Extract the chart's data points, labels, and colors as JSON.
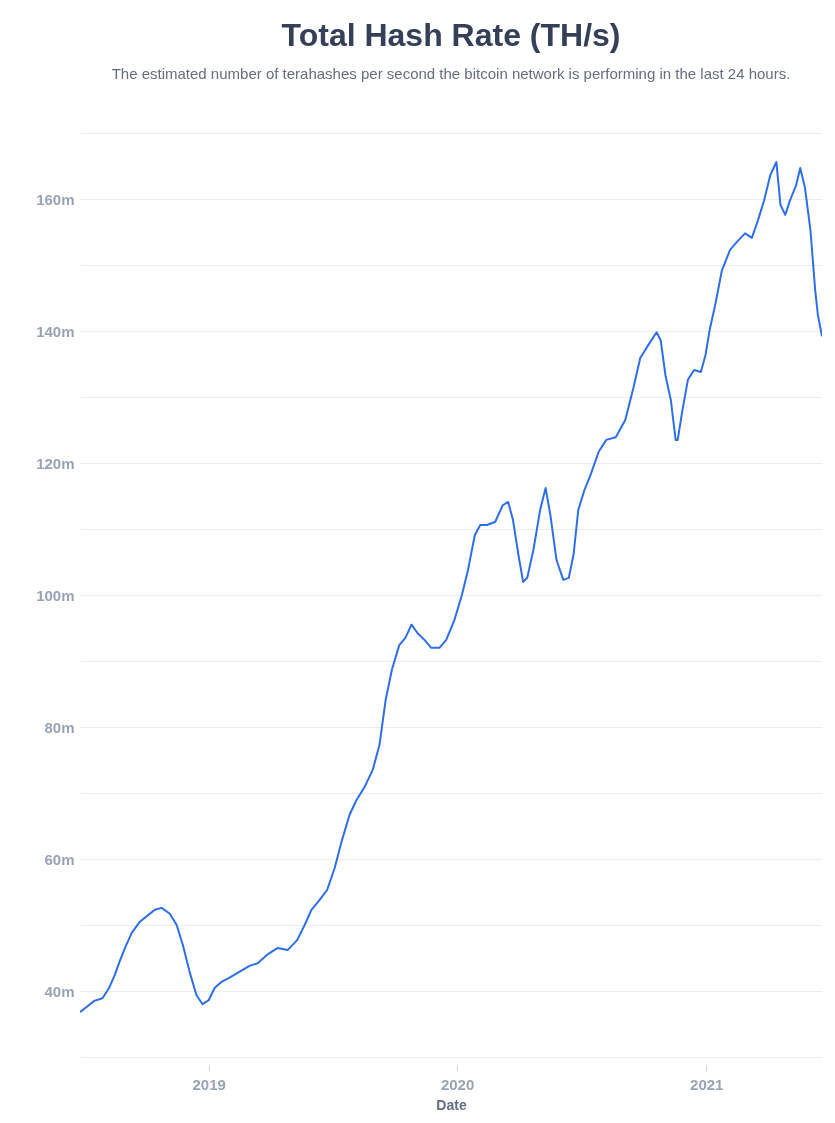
{
  "chart_data": {
    "type": "line",
    "title": "Total Hash Rate (TH/s)",
    "subtitle": "The estimated number of terahashes per second the bitcoin network is performing in the last 24 hours.",
    "xlabel": "Date",
    "x": [
      "2018-06-26",
      "2018-07-07",
      "2018-07-17",
      "2018-07-29",
      "2018-08-08",
      "2018-08-16",
      "2018-08-23",
      "2018-08-31",
      "2018-09-10",
      "2018-09-22",
      "2018-10-04",
      "2018-10-14",
      "2018-10-24",
      "2018-11-05",
      "2018-11-15",
      "2018-11-24",
      "2018-12-04",
      "2018-12-14",
      "2018-12-23",
      "2019-01-01",
      "2019-01-10",
      "2019-01-20",
      "2019-01-31",
      "2019-02-15",
      "2019-03-02",
      "2019-03-14",
      "2019-03-28",
      "2019-04-12",
      "2019-04-27",
      "2019-05-11",
      "2019-05-22",
      "2019-06-01",
      "2019-06-13",
      "2019-06-24",
      "2019-07-05",
      "2019-07-16",
      "2019-07-27",
      "2019-08-06",
      "2019-08-18",
      "2019-08-30",
      "2019-09-09",
      "2019-09-18",
      "2019-09-27",
      "2019-10-08",
      "2019-10-17",
      "2019-10-26",
      "2019-11-04",
      "2019-11-14",
      "2019-11-24",
      "2019-12-06",
      "2019-12-16",
      "2019-12-28",
      "2020-01-08",
      "2020-01-17",
      "2020-01-27",
      "2020-02-04",
      "2020-02-14",
      "2020-02-26",
      "2020-03-08",
      "2020-03-16",
      "2020-03-23",
      "2020-03-31",
      "2020-04-07",
      "2020-04-13",
      "2020-04-22",
      "2020-05-02",
      "2020-05-10",
      "2020-05-17",
      "2020-05-26",
      "2020-06-05",
      "2020-06-13",
      "2020-06-20",
      "2020-06-27",
      "2020-07-06",
      "2020-07-15",
      "2020-07-27",
      "2020-08-07",
      "2020-08-21",
      "2020-09-04",
      "2020-09-16",
      "2020-09-26",
      "2020-10-08",
      "2020-10-20",
      "2020-10-26",
      "2020-11-02",
      "2020-11-10",
      "2020-11-17",
      "2020-11-20",
      "2020-11-27",
      "2020-12-05",
      "2020-12-14",
      "2020-12-24",
      "2020-12-31",
      "2021-01-06",
      "2021-01-14",
      "2021-01-24",
      "2021-02-05",
      "2021-02-15",
      "2021-02-27",
      "2021-03-09",
      "2021-03-18",
      "2021-03-27",
      "2021-04-05",
      "2021-04-14",
      "2021-04-20",
      "2021-04-27",
      "2021-05-04",
      "2021-05-13",
      "2021-05-19",
      "2021-05-26",
      "2021-06-03",
      "2021-06-10",
      "2021-06-14",
      "2021-06-20"
    ],
    "series": [
      {
        "color": "#2e6fe8",
        "values": [
          36.8,
          37.7,
          38.5,
          38.9,
          40.5,
          42.4,
          44.4,
          46.5,
          48.8,
          50.5,
          51.5,
          52.3,
          52.6,
          51.7,
          50.0,
          47.0,
          42.9,
          39.4,
          38.0,
          38.6,
          40.5,
          41.4,
          42.0,
          42.9,
          43.8,
          44.2,
          45.5,
          46.5,
          46.2,
          47.7,
          50.0,
          52.3,
          53.8,
          55.3,
          58.6,
          62.9,
          66.7,
          68.9,
          70.9,
          73.5,
          77.3,
          84.1,
          88.6,
          92.4,
          93.5,
          95.5,
          94.2,
          93.2,
          92.0,
          92.0,
          93.2,
          96.2,
          100.0,
          103.8,
          109.1,
          110.6,
          110.6,
          111.1,
          113.6,
          114.1,
          111.4,
          106.1,
          102.0,
          102.6,
          106.8,
          112.9,
          116.2,
          112.1,
          105.3,
          102.3,
          102.6,
          106.1,
          112.9,
          115.9,
          118.2,
          121.7,
          123.5,
          123.9,
          126.5,
          131.4,
          135.9,
          137.9,
          139.8,
          138.6,
          133.3,
          129.5,
          123.5,
          123.5,
          128.0,
          132.6,
          134.1,
          133.8,
          136.4,
          140.2,
          143.9,
          149.2,
          152.3,
          153.5,
          154.8,
          154.1,
          156.8,
          159.8,
          163.6,
          165.6,
          159.1,
          157.6,
          159.8,
          162.1,
          164.7,
          161.7,
          155.3,
          146.2,
          142.4,
          139.2
        ]
      }
    ],
    "xlim": [
      "2018-06-26",
      "2021-06-20"
    ],
    "xticks": [
      "2019",
      "2020",
      "2021"
    ],
    "ylim": [
      30,
      170
    ],
    "yticks": [
      {
        "value": 30,
        "label": null
      },
      {
        "value": 40,
        "label": "40m"
      },
      {
        "value": 50,
        "label": null
      },
      {
        "value": 60,
        "label": "60m"
      },
      {
        "value": 70,
        "label": null
      },
      {
        "value": 80,
        "label": "80m"
      },
      {
        "value": 90,
        "label": null
      },
      {
        "value": 100,
        "label": "100m"
      },
      {
        "value": 110,
        "label": null
      },
      {
        "value": 120,
        "label": "120m"
      },
      {
        "value": 130,
        "label": null
      },
      {
        "value": 140,
        "label": "140m"
      },
      {
        "value": 150,
        "label": null
      },
      {
        "value": 160,
        "label": "160m"
      },
      {
        "value": 170,
        "label": null
      }
    ],
    "grid": "y"
  }
}
